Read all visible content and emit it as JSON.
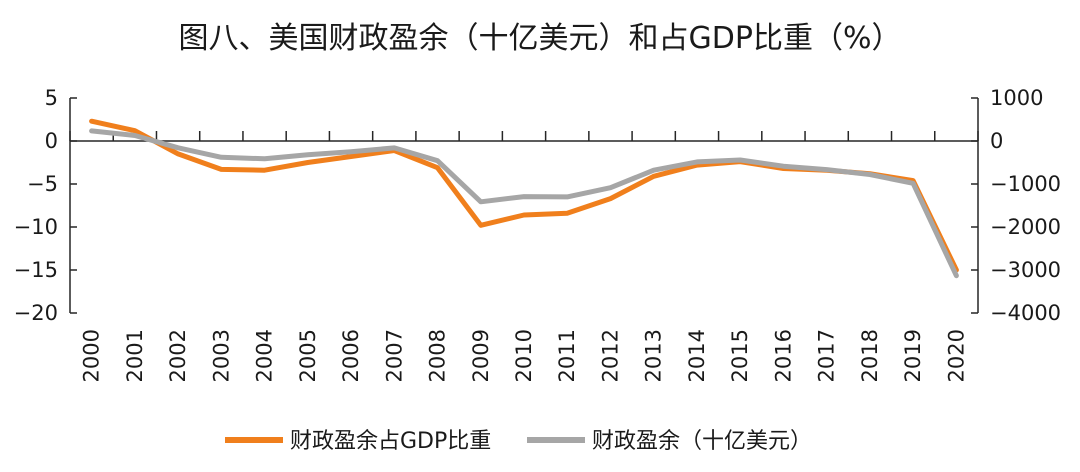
{
  "chart_data": {
    "type": "line",
    "title": "图八、美国财政盈余（十亿美元）和占GDP比重（%）",
    "x": [
      "2000",
      "2001",
      "2002",
      "2003",
      "2004",
      "2005",
      "2006",
      "2007",
      "2008",
      "2009",
      "2010",
      "2011",
      "2012",
      "2013",
      "2014",
      "2015",
      "2016",
      "2017",
      "2018",
      "2019",
      "2020"
    ],
    "y_left": {
      "ylim": [
        -20,
        5
      ],
      "ticks": [
        5,
        0,
        -5,
        -10,
        -15,
        -20
      ],
      "tick_labels": [
        "5",
        "0",
        "−5",
        "−10",
        "−15",
        "−20"
      ]
    },
    "y_right": {
      "ylim": [
        -4000,
        1000
      ],
      "ticks": [
        1000,
        0,
        -1000,
        -2000,
        -3000,
        -4000
      ],
      "tick_labels": [
        "1000",
        "0",
        "−1000",
        "−2000",
        "−3000",
        "−4000"
      ]
    },
    "series": [
      {
        "name": "财政盈余占GDP比重",
        "axis": "left",
        "color": "#F07F1C",
        "values": [
          2.3,
          1.2,
          -1.5,
          -3.3,
          -3.4,
          -2.5,
          -1.8,
          -1.1,
          -3.1,
          -9.8,
          -8.6,
          -8.4,
          -6.7,
          -4.1,
          -2.8,
          -2.4,
          -3.2,
          -3.4,
          -3.8,
          -4.6,
          -15.0
        ]
      },
      {
        "name": "财政盈余（十亿美元）",
        "axis": "right",
        "color": "#A6A6A6",
        "values": [
          236,
          128,
          -158,
          -378,
          -413,
          -318,
          -248,
          -161,
          -459,
          -1413,
          -1294,
          -1300,
          -1087,
          -680,
          -485,
          -442,
          -585,
          -665,
          -779,
          -984,
          -3132
        ]
      }
    ],
    "grid": false,
    "legend": "bottom-center"
  }
}
